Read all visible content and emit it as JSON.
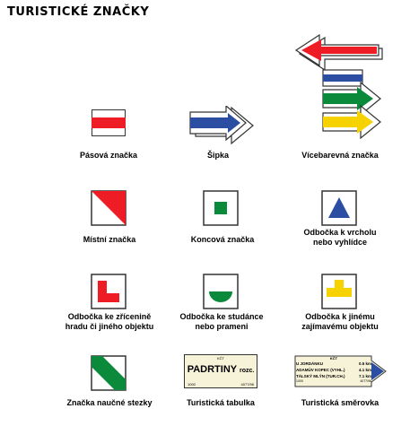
{
  "title": "TURISTICKÉ ZNAČKY",
  "colors": {
    "red": "#ee1c25",
    "blue": "#2b4ea2",
    "green": "#0a8a3a",
    "yellow": "#f6d200",
    "sign_bg": "#f7f3d8"
  },
  "items": [
    {
      "id": "pasova",
      "label": "Pásová značka"
    },
    {
      "id": "sipka",
      "label": "Šipka"
    },
    {
      "id": "vicebarevna",
      "label": "Vícebarevná značka"
    },
    {
      "id": "mistni",
      "label": "Místní značka"
    },
    {
      "id": "koncova",
      "label": "Koncová značka"
    },
    {
      "id": "vrchol",
      "label_line1": "Odbočka k vrcholu",
      "label_line2": "nebo vyhlídce"
    },
    {
      "id": "zricenina",
      "label_line1": "Odbočka ke zřícenině",
      "label_line2": "hradu či jiného objektu"
    },
    {
      "id": "studanka",
      "label_line1": "Odbočka ke studánce",
      "label_line2": "nebo prameni"
    },
    {
      "id": "zajimavy",
      "label_line1": "Odbočka k jinému",
      "label_line2": "zajímavému objektu"
    },
    {
      "id": "naucna",
      "label": "Značka naučné stezky"
    },
    {
      "id": "tabulka",
      "label": "Turistická tabulka"
    },
    {
      "id": "smerovka",
      "label": "Turistická směrovka"
    }
  ],
  "tabulka_sign": {
    "top": "KČT",
    "name": "PADRTINY",
    "suffix": "rozc.",
    "elev": "1000",
    "code": "4077/96"
  },
  "smerovka_sign": {
    "top": "KČT",
    "rows": [
      {
        "place": "U JORDÁNKU",
        "dist": "0.5 km"
      },
      {
        "place": "ADAMŮV KOPEC (VYHL.)",
        "dist": "4.1 km"
      },
      {
        "place": "TÁLSKÝ MLÝN (TUR.CH.)",
        "dist": "7.1 km"
      }
    ],
    "code": "1000",
    "ref": "4077/96"
  }
}
